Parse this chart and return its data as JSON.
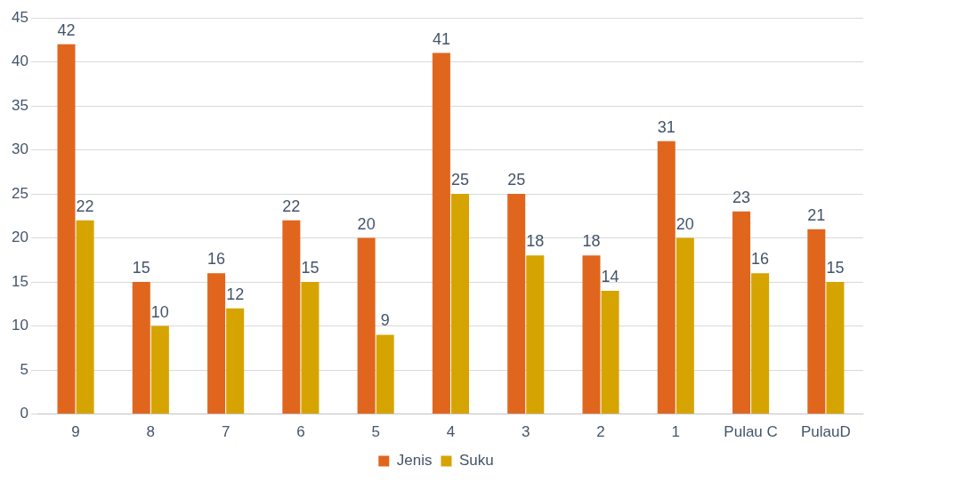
{
  "chart_data": {
    "type": "bar",
    "categories": [
      "9",
      "8",
      "7",
      "6",
      "5",
      "4",
      "3",
      "2",
      "1",
      "Pulau C",
      "PulauD"
    ],
    "series": [
      {
        "name": "Jenis",
        "color": "#e0661e",
        "values": [
          42,
          15,
          16,
          22,
          20,
          41,
          25,
          18,
          31,
          23,
          21
        ]
      },
      {
        "name": "Suku",
        "color": "#d6a400",
        "values": [
          22,
          10,
          12,
          15,
          9,
          25,
          18,
          14,
          20,
          16,
          15
        ]
      }
    ],
    "ylim": [
      0,
      45
    ],
    "yticks": [
      0,
      5,
      10,
      15,
      20,
      25,
      30,
      35,
      40,
      45
    ],
    "grid": "y",
    "legend": "bottom",
    "data_labels": true
  }
}
